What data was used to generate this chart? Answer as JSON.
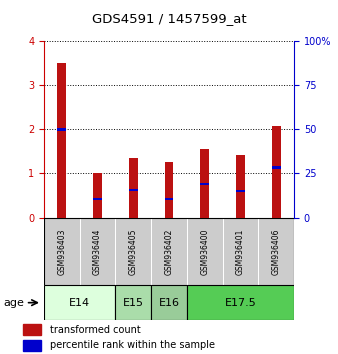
{
  "title": "GDS4591 / 1457599_at",
  "samples": [
    "GSM936403",
    "GSM936404",
    "GSM936405",
    "GSM936402",
    "GSM936400",
    "GSM936401",
    "GSM936406"
  ],
  "red_values": [
    3.5,
    1.0,
    1.35,
    1.27,
    1.55,
    1.42,
    2.08
  ],
  "blue_values": [
    2.0,
    0.42,
    0.63,
    0.42,
    0.76,
    0.6,
    1.13
  ],
  "left_ylim": [
    0,
    4
  ],
  "right_ylim": [
    0,
    100
  ],
  "left_yticks": [
    0,
    1,
    2,
    3,
    4
  ],
  "right_yticks": [
    0,
    25,
    50,
    75,
    100
  ],
  "right_yticklabels": [
    "0",
    "25",
    "50",
    "75",
    "100%"
  ],
  "left_color": "#cc0000",
  "right_color": "#0000cc",
  "bar_color": "#bb1111",
  "blue_marker_color": "#0000cc",
  "grid_color": "black",
  "age_groups": [
    {
      "label": "E14",
      "samples": [
        0,
        1
      ],
      "color": "#ddffdd"
    },
    {
      "label": "E15",
      "samples": [
        2
      ],
      "color": "#aaddaa"
    },
    {
      "label": "E16",
      "samples": [
        3
      ],
      "color": "#99cc99"
    },
    {
      "label": "E17.5",
      "samples": [
        4,
        5,
        6
      ],
      "color": "#55cc55"
    }
  ],
  "legend_red_label": "transformed count",
  "legend_blue_label": "percentile rank within the sample",
  "age_label": "age",
  "sample_box_color": "#cccccc",
  "bar_width": 0.25
}
